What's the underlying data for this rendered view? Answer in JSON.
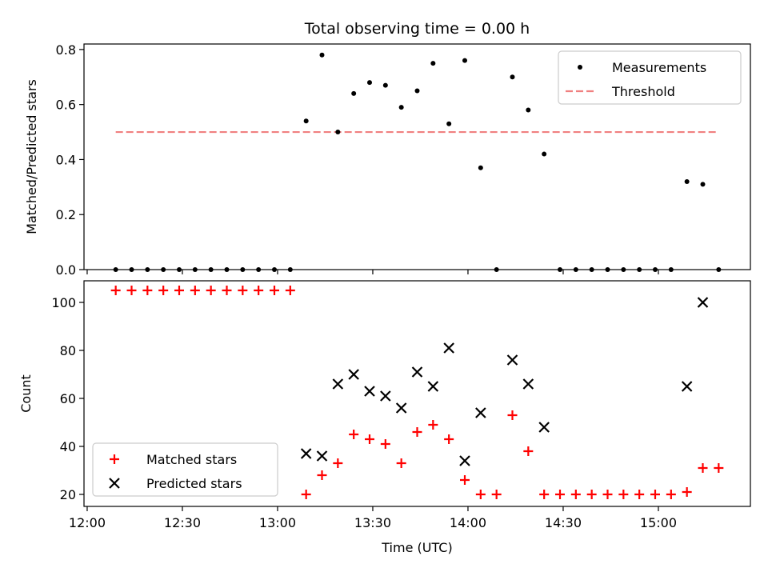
{
  "chart_data": [
    {
      "type": "scatter",
      "title": "Total observing time = 0.00 h",
      "xlabel": "",
      "ylabel": "Matched/Predicted stars",
      "xlim": [
        "11:59",
        "15:29"
      ],
      "ylim": [
        0,
        0.82
      ],
      "yticks": [
        "0.0",
        "0.2",
        "0.4",
        "0.6",
        "0.8"
      ],
      "legend_position": "top-right",
      "grid": false,
      "series": [
        {
          "name": "Measurements",
          "marker": "dot",
          "color": "#000000",
          "x": [
            "12:09",
            "12:14",
            "12:19",
            "12:24",
            "12:29",
            "12:34",
            "12:39",
            "12:44",
            "12:49",
            "12:54",
            "12:59",
            "13:04",
            "13:09",
            "13:14",
            "13:19",
            "13:24",
            "13:29",
            "13:34",
            "13:39",
            "13:44",
            "13:49",
            "13:54",
            "13:59",
            "14:04",
            "14:09",
            "14:14",
            "14:19",
            "14:24",
            "14:29",
            "14:34",
            "14:39",
            "14:44",
            "14:49",
            "14:54",
            "14:59",
            "15:04",
            "15:09",
            "15:14",
            "15:19"
          ],
          "y": [
            0,
            0,
            0,
            0,
            0,
            0,
            0,
            0,
            0,
            0,
            0,
            0,
            0.54,
            0.78,
            0.5,
            0.64,
            0.68,
            0.67,
            0.59,
            0.65,
            0.75,
            0.53,
            0.76,
            0.37,
            0,
            0.7,
            0.58,
            0.42,
            0,
            0,
            0,
            0,
            0,
            0,
            0,
            0,
            0.32,
            0.31,
            0
          ]
        },
        {
          "name": "Threshold",
          "style": "dashed",
          "color": "#f08080",
          "x": [
            "12:09",
            "15:19"
          ],
          "y": [
            0.5,
            0.5
          ]
        }
      ]
    },
    {
      "type": "scatter",
      "title": "",
      "xlabel": "Time (UTC)",
      "ylabel": "Count",
      "xlim": [
        "11:59",
        "15:29"
      ],
      "ylim": [
        15,
        109
      ],
      "yticks": [
        "20",
        "40",
        "60",
        "80",
        "100"
      ],
      "xticks": [
        "12:00",
        "12:30",
        "13:00",
        "13:30",
        "14:00",
        "14:30",
        "15:00"
      ],
      "legend_position": "bottom-left",
      "grid": false,
      "series": [
        {
          "name": "Matched stars",
          "marker": "plus",
          "color": "#ff0000",
          "x": [
            "12:09",
            "12:14",
            "12:19",
            "12:24",
            "12:29",
            "12:34",
            "12:39",
            "12:44",
            "12:49",
            "12:54",
            "12:59",
            "13:04",
            "13:09",
            "13:14",
            "13:19",
            "13:24",
            "13:29",
            "13:34",
            "13:39",
            "13:44",
            "13:49",
            "13:54",
            "13:59",
            "14:04",
            "14:09",
            "14:14",
            "14:19",
            "14:24",
            "14:29",
            "14:34",
            "14:39",
            "14:44",
            "14:49",
            "14:54",
            "14:59",
            "15:04",
            "15:09",
            "15:14",
            "15:19"
          ],
          "y": [
            105,
            105,
            105,
            105,
            105,
            105,
            105,
            105,
            105,
            105,
            105,
            105,
            20,
            28,
            33,
            45,
            43,
            41,
            33,
            46,
            49,
            43,
            26,
            20,
            20,
            53,
            38,
            20,
            20,
            20,
            20,
            20,
            20,
            20,
            20,
            20,
            21,
            31,
            31
          ]
        },
        {
          "name": "Predicted stars",
          "marker": "x",
          "color": "#000000",
          "x": [
            "13:09",
            "13:14",
            "13:19",
            "13:24",
            "13:29",
            "13:34",
            "13:39",
            "13:44",
            "13:49",
            "13:54",
            "13:59",
            "14:04",
            "14:14",
            "14:19",
            "14:24",
            "15:09",
            "15:14"
          ],
          "y": [
            37,
            36,
            66,
            70,
            63,
            61,
            56,
            71,
            65,
            81,
            34,
            54,
            76,
            66,
            48,
            65,
            100
          ]
        }
      ]
    }
  ]
}
